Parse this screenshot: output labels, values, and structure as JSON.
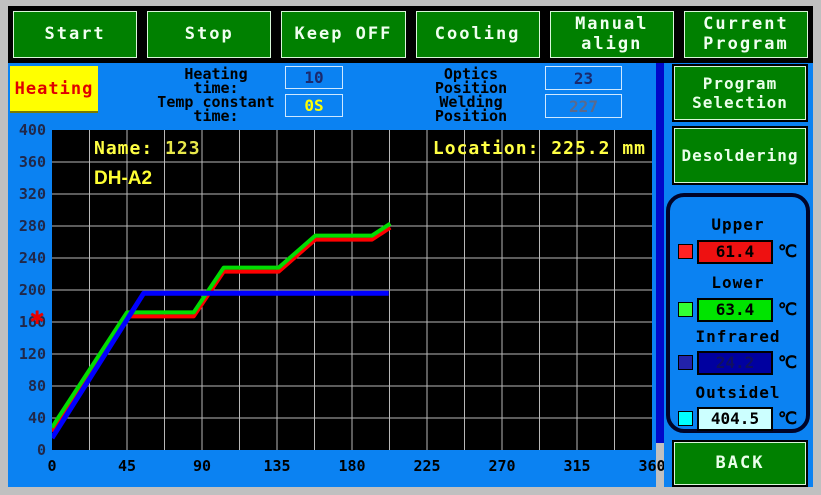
{
  "toolbar": {
    "buttons": [
      "Start",
      "Stop",
      "Keep OFF",
      "Cooling",
      "Manual\nalign",
      "Current\nProgram"
    ]
  },
  "status_row": {
    "mode_label": "Heating",
    "heating_time_label": "Heating\ntime:",
    "heating_time_value": "10",
    "temp_constant_label": "Temp constant\ntime:",
    "temp_constant_value": "0S",
    "optics_label": "Optics\nPosition",
    "optics_value": "23",
    "welding_label": "Welding\nPosition",
    "welding_value": "227"
  },
  "right_panel": {
    "program_selection_label": "Program\nSelection",
    "desoldering_label": "Desoldering",
    "back_label": "BACK",
    "temperatures": [
      {
        "label": "Upper",
        "value": "61.4",
        "unit": "℃",
        "color": "#ee1111"
      },
      {
        "label": "Lower",
        "value": "63.4",
        "unit": "℃",
        "color": "#00e400"
      },
      {
        "label": "Infrared",
        "value": "24.2",
        "unit": "℃",
        "color": "#0000a0"
      },
      {
        "label": "Outsidel",
        "value": "404.5",
        "unit": "℃",
        "color": "#ccffff"
      }
    ]
  },
  "colors": {
    "main_background": "#0b82f2",
    "button_green": "#008000",
    "top_strip": "#000000",
    "frame_silver": "#c0c0c0",
    "divider_navy": "#0008c8",
    "mode_box_yellow": "#ffff00",
    "mode_text_red": "#e00000",
    "chart_text_yellow": "#ffff44"
  },
  "chart_data": {
    "type": "line",
    "name_label": "Name:",
    "name_value": "123",
    "program_name": "DH-A2",
    "location_label": "Location:",
    "location_value": "225.2 mm",
    "xlim": [
      0,
      360
    ],
    "ylim": [
      0,
      400
    ],
    "x_ticks": [
      0,
      45,
      90,
      135,
      180,
      225,
      270,
      315,
      360
    ],
    "y_ticks": [
      0,
      40,
      80,
      120,
      160,
      200,
      240,
      280,
      320,
      360,
      400
    ],
    "x_grid_step": 22.5,
    "y_grid_step": 40,
    "grid": true,
    "plot_bg": "#000000",
    "grid_color": "#b8b8b8",
    "axis_marker": {
      "symbol": "✱",
      "y": 169,
      "color": "#e80000"
    },
    "series": [
      {
        "name": "upper-red",
        "color": "#ff0000",
        "width": 4,
        "points": [
          [
            0,
            23
          ],
          [
            3,
            33
          ],
          [
            45,
            167
          ],
          [
            85,
            167
          ],
          [
            103,
            223
          ],
          [
            136,
            223
          ],
          [
            158,
            263
          ],
          [
            192,
            263
          ],
          [
            203,
            278
          ]
        ]
      },
      {
        "name": "lower-green",
        "color": "#00dc00",
        "width": 4,
        "points": [
          [
            0,
            28
          ],
          [
            3,
            38
          ],
          [
            45,
            172
          ],
          [
            85,
            172
          ],
          [
            103,
            228
          ],
          [
            136,
            228
          ],
          [
            158,
            268
          ],
          [
            192,
            268
          ],
          [
            203,
            283
          ]
        ]
      },
      {
        "name": "infrared-blue",
        "color": "#0000ff",
        "width": 5,
        "points": [
          [
            0,
            15
          ],
          [
            55,
            196
          ],
          [
            202,
            196
          ]
        ]
      }
    ]
  }
}
